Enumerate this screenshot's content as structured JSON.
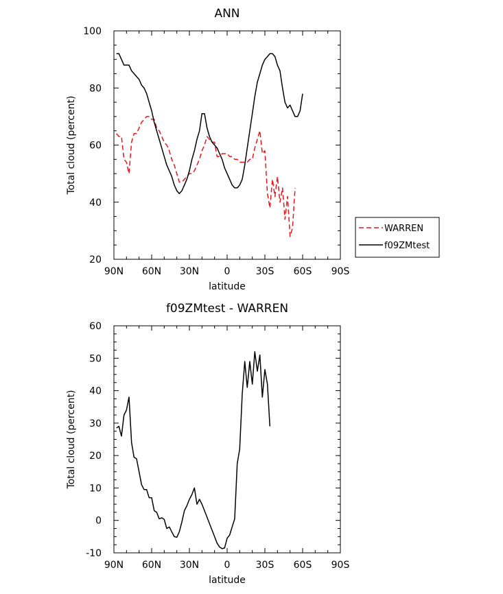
{
  "chart_data": [
    {
      "type": "line",
      "title": "ANN",
      "xlabel": "latitude",
      "ylabel": "Total cloud (percent)",
      "xlim": [
        90,
        -90
      ],
      "ylim": [
        20,
        100
      ],
      "x_ticks": [
        {
          "value": 90,
          "label": "90N"
        },
        {
          "value": 60,
          "label": "60N"
        },
        {
          "value": 30,
          "label": "30N"
        },
        {
          "value": 0,
          "label": "0"
        },
        {
          "value": -30,
          "label": "30S"
        },
        {
          "value": -60,
          "label": "60S"
        },
        {
          "value": -90,
          "label": "90S"
        }
      ],
      "y_ticks": [
        20,
        40,
        60,
        80,
        100
      ],
      "legend": {
        "placement": "outside-right"
      },
      "series": [
        {
          "name": "WARREN",
          "color": "#e8141c",
          "dash": "dashed",
          "points": [
            [
              88,
              64
            ],
            [
              86,
              63
            ],
            [
              84,
              63
            ],
            [
              82,
              55
            ],
            [
              80,
              54
            ],
            [
              78,
              50
            ],
            [
              76,
              61
            ],
            [
              74,
              64
            ],
            [
              72,
              64
            ],
            [
              70,
              66
            ],
            [
              68,
              68
            ],
            [
              66,
              69
            ],
            [
              64,
              70
            ],
            [
              62,
              70
            ],
            [
              60,
              69
            ],
            [
              58,
              69
            ],
            [
              56,
              66
            ],
            [
              54,
              65
            ],
            [
              52,
              63
            ],
            [
              50,
              61
            ],
            [
              48,
              60
            ],
            [
              46,
              58
            ],
            [
              44,
              55
            ],
            [
              42,
              53
            ],
            [
              40,
              50
            ],
            [
              38,
              47
            ],
            [
              36,
              47
            ],
            [
              34,
              48
            ],
            [
              32,
              49
            ],
            [
              30,
              50
            ],
            [
              28,
              50
            ],
            [
              26,
              51
            ],
            [
              24,
              53
            ],
            [
              22,
              55
            ],
            [
              20,
              58
            ],
            [
              18,
              60
            ],
            [
              16,
              63
            ],
            [
              14,
              62
            ],
            [
              12,
              61
            ],
            [
              10,
              61
            ],
            [
              8,
              56
            ],
            [
              6,
              56
            ],
            [
              4,
              57
            ],
            [
              2,
              57
            ],
            [
              0,
              57
            ],
            [
              -2,
              56
            ],
            [
              -4,
              56
            ],
            [
              -6,
              55
            ],
            [
              -8,
              55
            ],
            [
              -10,
              54
            ],
            [
              -12,
              54
            ],
            [
              -14,
              54
            ],
            [
              -16,
              54
            ],
            [
              -18,
              55
            ],
            [
              -20,
              55
            ],
            [
              -22,
              59
            ],
            [
              -24,
              62
            ],
            [
              -26,
              65
            ],
            [
              -28,
              57
            ],
            [
              -30,
              58
            ],
            [
              -32,
              43
            ],
            [
              -34,
              38
            ],
            [
              -36,
              48
            ],
            [
              -38,
              42
            ],
            [
              -40,
              49
            ],
            [
              -42,
              40
            ],
            [
              -44,
              45
            ],
            [
              -46,
              34
            ],
            [
              -48,
              42
            ],
            [
              -50,
              28
            ],
            [
              -52,
              31
            ],
            [
              -54,
              45
            ]
          ]
        },
        {
          "name": "f09ZMtest",
          "color": "#000000",
          "dash": "solid",
          "points": [
            [
              88,
              92
            ],
            [
              86,
              92
            ],
            [
              84,
              90
            ],
            [
              82,
              88
            ],
            [
              80,
              88
            ],
            [
              78,
              88
            ],
            [
              76,
              86
            ],
            [
              74,
              85
            ],
            [
              72,
              84
            ],
            [
              70,
              83
            ],
            [
              68,
              81
            ],
            [
              66,
              80
            ],
            [
              64,
              78
            ],
            [
              62,
              75
            ],
            [
              60,
              72
            ],
            [
              58,
              68
            ],
            [
              56,
              65
            ],
            [
              54,
              62
            ],
            [
              52,
              59
            ],
            [
              50,
              56
            ],
            [
              48,
              53
            ],
            [
              46,
              51
            ],
            [
              44,
              49
            ],
            [
              42,
              46
            ],
            [
              40,
              44
            ],
            [
              38,
              43
            ],
            [
              36,
              44
            ],
            [
              34,
              46
            ],
            [
              32,
              48
            ],
            [
              30,
              51
            ],
            [
              28,
              55
            ],
            [
              26,
              58
            ],
            [
              24,
              62
            ],
            [
              22,
              65
            ],
            [
              20,
              71
            ],
            [
              18,
              71
            ],
            [
              16,
              66
            ],
            [
              14,
              63
            ],
            [
              12,
              61
            ],
            [
              10,
              60
            ],
            [
              8,
              59
            ],
            [
              6,
              57
            ],
            [
              4,
              55
            ],
            [
              2,
              52
            ],
            [
              0,
              50
            ],
            [
              -2,
              48
            ],
            [
              -4,
              46
            ],
            [
              -6,
              45
            ],
            [
              -8,
              45
            ],
            [
              -10,
              46
            ],
            [
              -12,
              48
            ],
            [
              -14,
              53
            ],
            [
              -16,
              59
            ],
            [
              -18,
              65
            ],
            [
              -20,
              71
            ],
            [
              -22,
              77
            ],
            [
              -24,
              82
            ],
            [
              -26,
              85
            ],
            [
              -28,
              88
            ],
            [
              -30,
              90
            ],
            [
              -32,
              91
            ],
            [
              -34,
              92
            ],
            [
              -36,
              92
            ],
            [
              -38,
              91
            ],
            [
              -40,
              88
            ],
            [
              -42,
              86
            ],
            [
              -44,
              80
            ],
            [
              -46,
              75
            ],
            [
              -48,
              73
            ],
            [
              -50,
              74
            ],
            [
              -52,
              72
            ],
            [
              -54,
              70
            ],
            [
              -56,
              70
            ],
            [
              -58,
              72
            ],
            [
              -60,
              78
            ]
          ]
        }
      ]
    },
    {
      "type": "line",
      "title": "f09ZMtest - WARREN",
      "xlabel": "latitude",
      "ylabel": "Total cloud (percent)",
      "xlim": [
        90,
        -90
      ],
      "ylim": [
        -10,
        60
      ],
      "x_ticks": [
        {
          "value": 90,
          "label": "90N"
        },
        {
          "value": 60,
          "label": "60N"
        },
        {
          "value": 30,
          "label": "30N"
        },
        {
          "value": 0,
          "label": "0"
        },
        {
          "value": -30,
          "label": "30S"
        },
        {
          "value": -60,
          "label": "60S"
        },
        {
          "value": -90,
          "label": "90S"
        }
      ],
      "y_ticks": [
        -10,
        0,
        10,
        20,
        30,
        40,
        50,
        60
      ],
      "series": [
        {
          "color": "#000000",
          "dash": "solid",
          "points": [
            [
              88,
              28.5
            ],
            [
              86,
              29
            ],
            [
              84,
              26
            ],
            [
              82,
              32.5
            ],
            [
              80,
              34
            ],
            [
              78,
              38
            ],
            [
              76,
              24
            ],
            [
              74,
              19.5
            ],
            [
              72,
              19
            ],
            [
              70,
              15
            ],
            [
              68,
              11
            ],
            [
              66,
              9.5
            ],
            [
              64,
              9.5
            ],
            [
              62,
              7
            ],
            [
              60,
              7
            ],
            [
              58,
              3
            ],
            [
              56,
              2.5
            ],
            [
              54,
              0.5
            ],
            [
              52,
              0.8
            ],
            [
              50,
              0.3
            ],
            [
              48,
              -2.5
            ],
            [
              46,
              -2
            ],
            [
              44,
              -3.5
            ],
            [
              42,
              -5
            ],
            [
              40,
              -5.2
            ],
            [
              38,
              -3.5
            ],
            [
              36,
              -0.5
            ],
            [
              34,
              3
            ],
            [
              32,
              4.5
            ],
            [
              30,
              6.5
            ],
            [
              28,
              8
            ],
            [
              26,
              10
            ],
            [
              24,
              5
            ],
            [
              22,
              6.5
            ],
            [
              20,
              5
            ],
            [
              18,
              3
            ],
            [
              16,
              1
            ],
            [
              14,
              -1
            ],
            [
              12,
              -3
            ],
            [
              10,
              -5
            ],
            [
              8,
              -7
            ],
            [
              6,
              -8.2
            ],
            [
              4,
              -8.7
            ],
            [
              2,
              -8.5
            ],
            [
              0,
              -5.5
            ],
            [
              -2,
              -4.5
            ],
            [
              -4,
              -2
            ],
            [
              -6,
              0.5
            ],
            [
              -8,
              17.5
            ],
            [
              -10,
              22
            ],
            [
              -12,
              39
            ],
            [
              -14,
              49
            ],
            [
              -16,
              41
            ],
            [
              -18,
              49
            ],
            [
              -20,
              42
            ],
            [
              -22,
              52
            ],
            [
              -24,
              46
            ],
            [
              -26,
              51
            ],
            [
              -28,
              38
            ],
            [
              -30,
              46.5
            ],
            [
              -32,
              42
            ],
            [
              -34,
              29
            ]
          ]
        }
      ]
    }
  ]
}
